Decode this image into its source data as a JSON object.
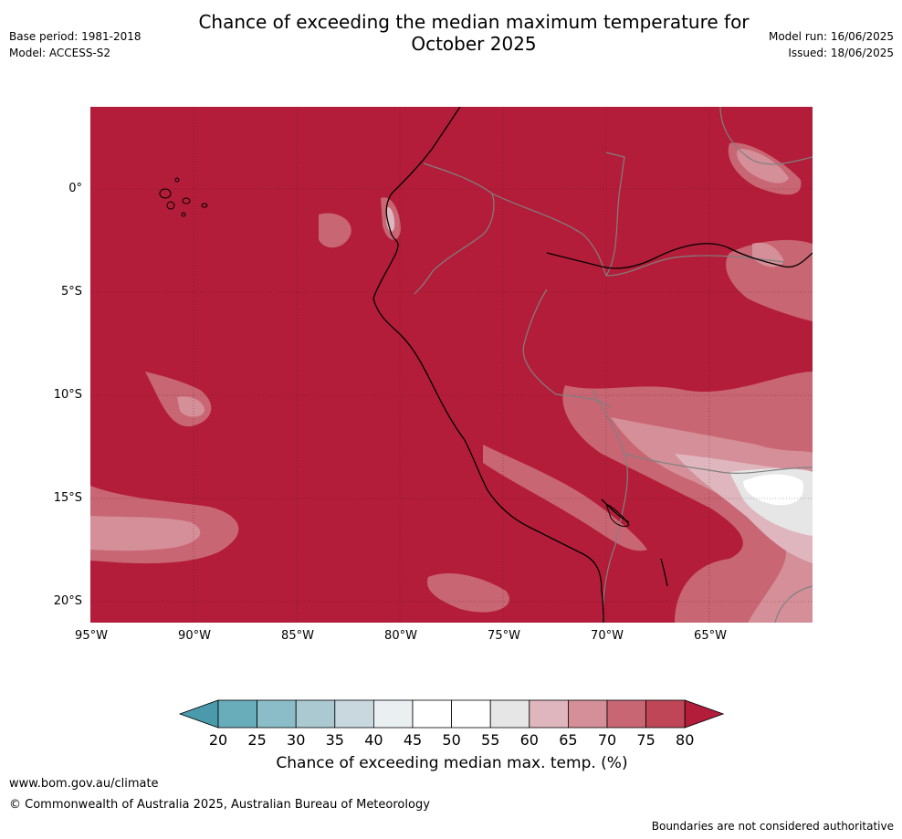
{
  "header": {
    "title_line1": "Chance of exceeding the median maximum temperature for",
    "title_line2": "October 2025",
    "base_period": "Base period: 1981-2018",
    "model": "Model: ACCESS-S2",
    "model_run": "Model run: 16/06/2025",
    "issued": "Issued: 18/06/2025"
  },
  "map": {
    "lat_labels": [
      "0°",
      "5°S",
      "10°S",
      "15°S",
      "20°S"
    ],
    "lon_labels": [
      "95°W",
      "90°W",
      "85°W",
      "80°W",
      "75°W",
      "70°W",
      "65°W"
    ],
    "region_fill_color": "#b31d39"
  },
  "colorbar": {
    "ticks": [
      "20",
      "25",
      "30",
      "35",
      "40",
      "45",
      "50",
      "55",
      "60",
      "65",
      "70",
      "75",
      "80"
    ],
    "colors": [
      "#4a9aab",
      "#69acba",
      "#8bbdc8",
      "#aac9d1",
      "#c8d8de",
      "#eaf0f2",
      "#ffffff",
      "#ffffff",
      "#e6e6e6",
      "#dfb6bd",
      "#d48f99",
      "#c86673",
      "#bf4657",
      "#b31d39"
    ],
    "label": "Chance of exceeding median max. temp. (%)"
  },
  "footer": {
    "url": "www.bom.gov.au/climate",
    "copyright": "© Commonwealth of Australia 2025, Australian Bureau of Meteorology",
    "disclaimer": "Boundaries are not considered authoritative"
  }
}
